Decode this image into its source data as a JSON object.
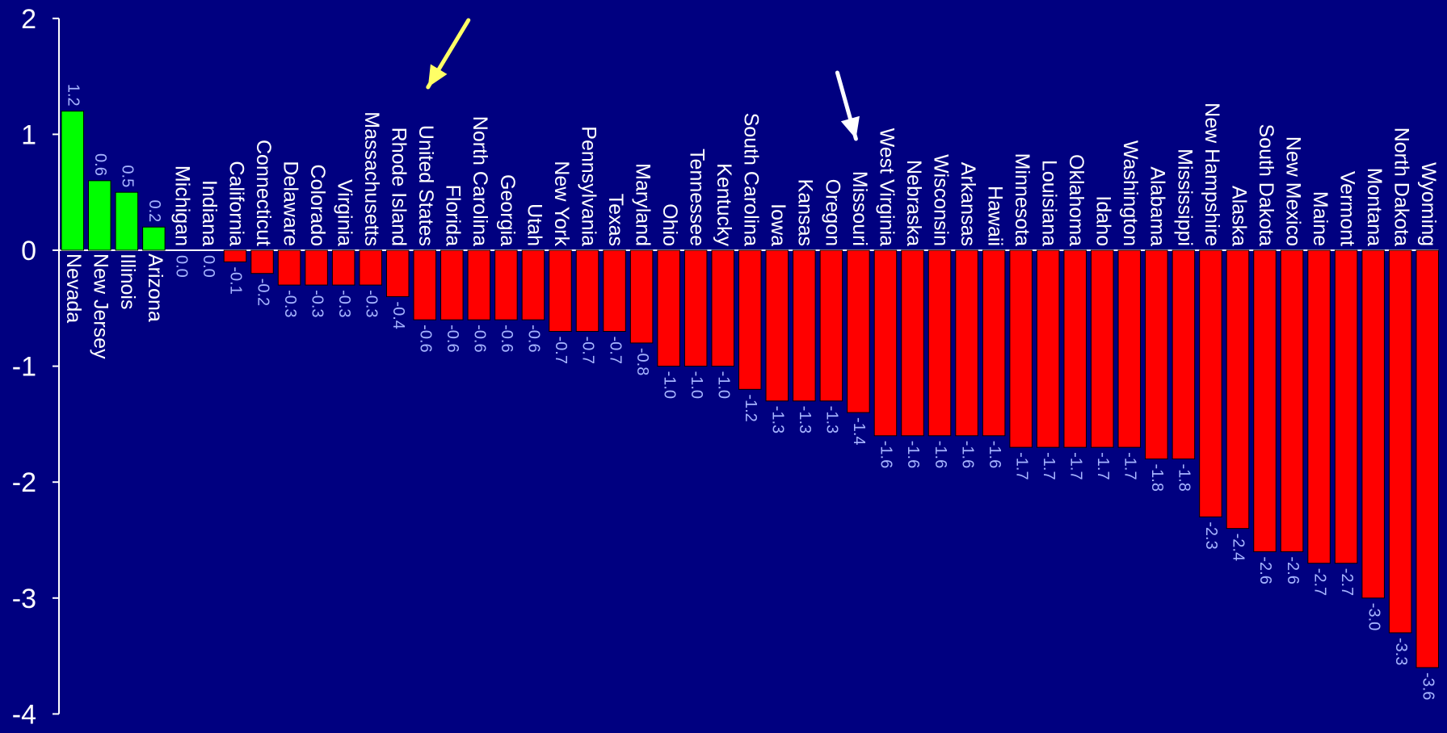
{
  "colors": {
    "background": "#000080",
    "positive": "#00ff00",
    "negative": "#ff0000",
    "axis": "#ffffff",
    "label_text": "#ffffff",
    "value_text": "#a6b4ff",
    "yellow_arrow": "#ffff66",
    "white_arrow": "#ffffff"
  },
  "chart_data": {
    "type": "bar",
    "title": "",
    "xlabel": "",
    "ylabel": "",
    "ylim": [
      -4,
      2
    ],
    "yticks": [
      "2",
      "1",
      "0",
      "-1",
      "-2",
      "-3",
      "-4"
    ],
    "grid": false,
    "legend": "none",
    "categories": [
      "Nevada",
      "New Jersey",
      "Illinois",
      "Arizona",
      "Michigan",
      "Indiana",
      "California",
      "Connecticut",
      "Delaware",
      "Colorado",
      "Virginia",
      "Massachusetts",
      "Rhode Island",
      "United States",
      "Florida",
      "North Carolina",
      "Georgia",
      "Utah",
      "New York",
      "Pennsylvania",
      "Texas",
      "Maryland",
      "Ohio",
      "Tennessee",
      "Kentucky",
      "South Carolina",
      "Iowa",
      "Kansas",
      "Oregon",
      "Missouri",
      "West Virginia",
      "Nebraska",
      "Wisconsin",
      "Arkansas",
      "Hawaii",
      "Minnesota",
      "Louisiana",
      "Oklahoma",
      "Idaho",
      "Washington",
      "Alabama",
      "Mississippi",
      "New Hampshire",
      "Alaska",
      "South Dakota",
      "New Mexico",
      "Maine",
      "Vermont",
      "Montana",
      "North Dakota",
      "Wyoming"
    ],
    "values": [
      1.2,
      0.6,
      0.5,
      0.2,
      0.0,
      0.0,
      -0.1,
      -0.2,
      -0.3,
      -0.3,
      -0.3,
      -0.3,
      -0.4,
      -0.6,
      -0.6,
      -0.6,
      -0.6,
      -0.6,
      -0.7,
      -0.7,
      -0.7,
      -0.8,
      -1.0,
      -1.0,
      -1.0,
      -1.2,
      -1.3,
      -1.3,
      -1.3,
      -1.4,
      -1.6,
      -1.6,
      -1.6,
      -1.6,
      -1.6,
      -1.7,
      -1.7,
      -1.7,
      -1.7,
      -1.7,
      -1.8,
      -1.8,
      -2.3,
      -2.4,
      -2.6,
      -2.6,
      -2.7,
      -2.7,
      -3.0,
      -3.3,
      -3.6
    ],
    "value_labels": [
      "1.2",
      "0.6",
      "0.5",
      "0.2",
      "0.0",
      "0.0",
      "-0.1",
      "-0.2",
      "-0.3",
      "-0.3",
      "-0.3",
      "-0.3",
      "-0.4",
      "-0.6",
      "-0.6",
      "-0.6",
      "-0.6",
      "-0.6",
      "-0.7",
      "-0.7",
      "-0.7",
      "-0.8",
      "-1.0",
      "-1.0",
      "-1.0",
      "-1.2",
      "-1.3",
      "-1.3",
      "-1.3",
      "-1.4",
      "-1.6",
      "-1.6",
      "-1.6",
      "-1.6",
      "-1.6",
      "-1.7",
      "-1.7",
      "-1.7",
      "-1.7",
      "-1.7",
      "-1.8",
      "-1.8",
      "-2.3",
      "-2.4",
      "-2.6",
      "-2.6",
      "-2.7",
      "-2.7",
      "-3.0",
      "-3.3",
      "-3.6"
    ],
    "annotations": [
      {
        "type": "arrow",
        "color": "yellow",
        "points_to": "United States"
      },
      {
        "type": "arrow",
        "color": "white",
        "points_to": "Missouri"
      }
    ]
  }
}
